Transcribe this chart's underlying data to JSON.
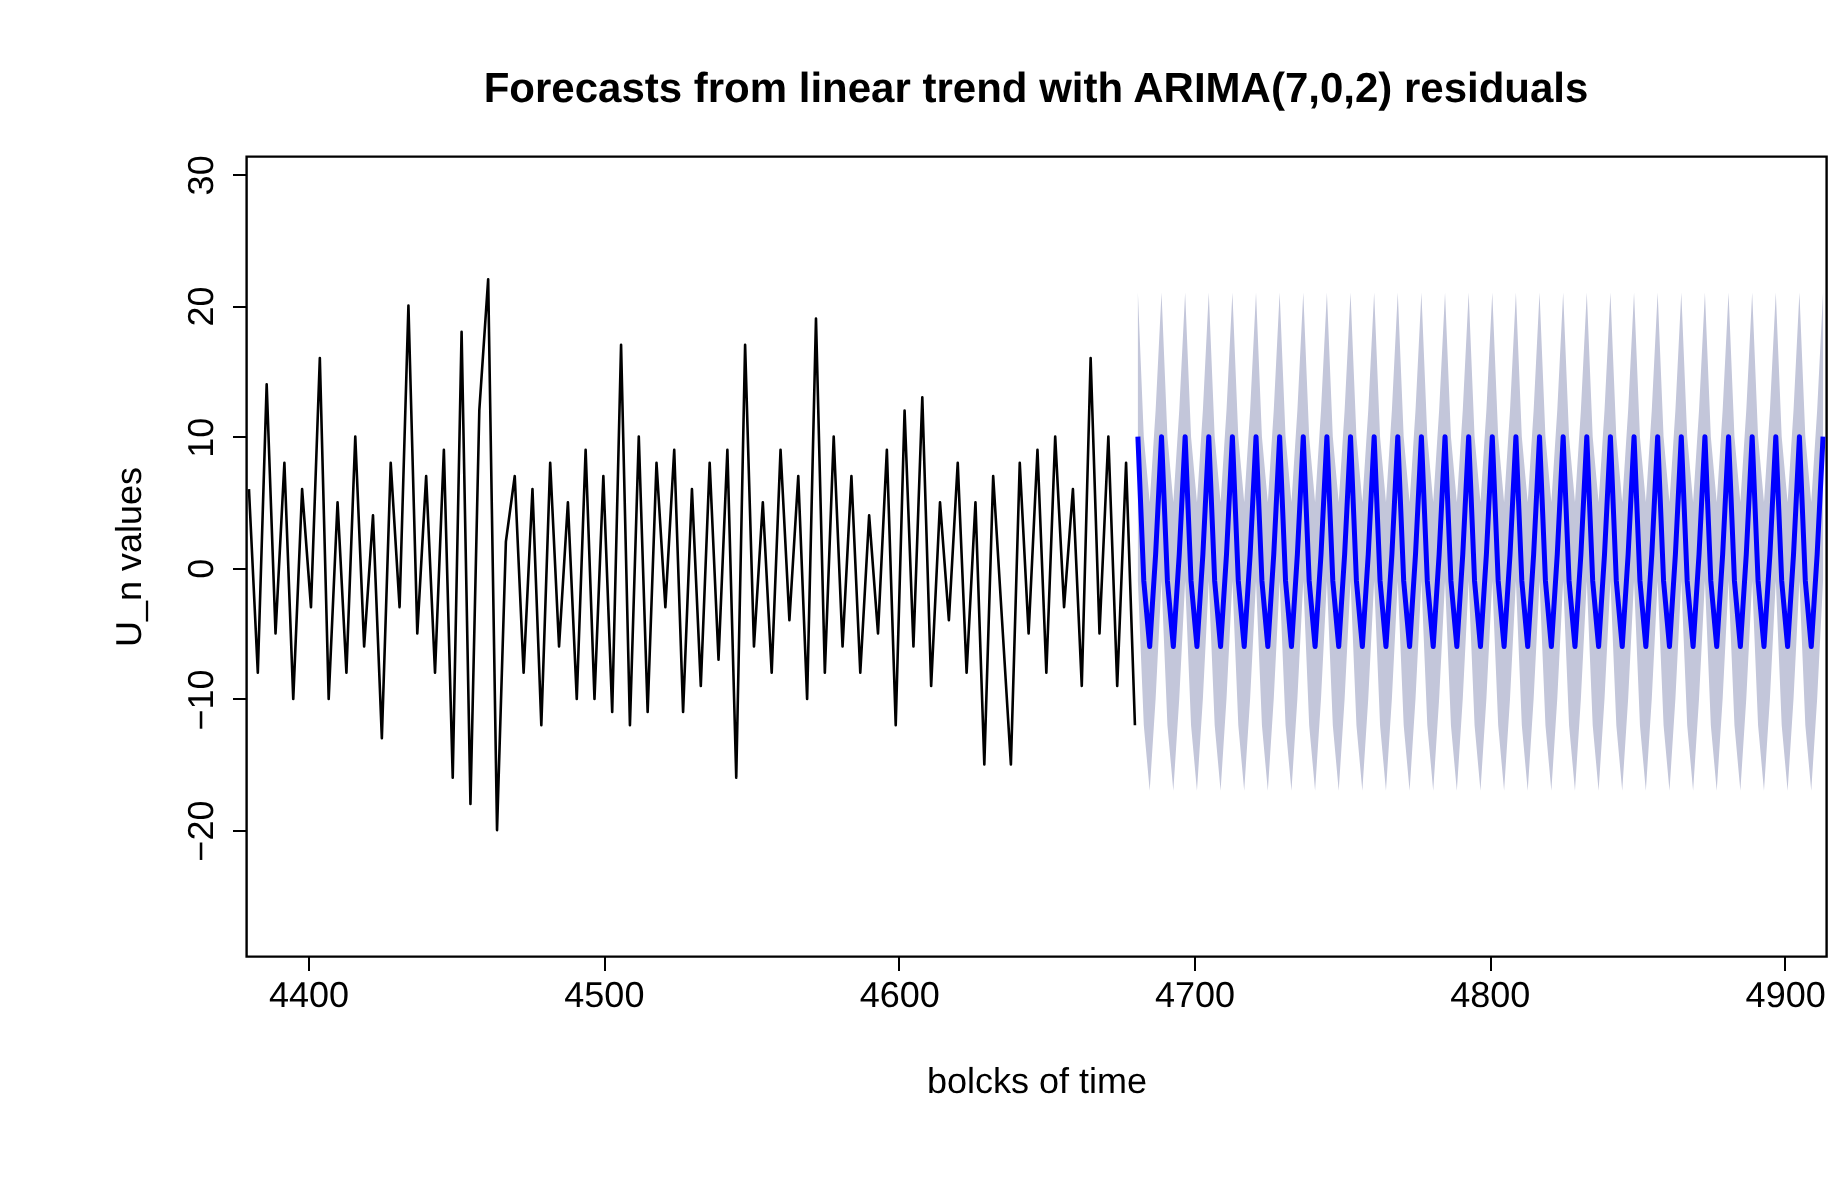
{
  "chart_data": {
    "type": "line",
    "title": "Forecasts from linear trend with ARIMA(7,0,2) residuals",
    "xlabel": "bolcks of time",
    "ylabel": "U_n values",
    "xlim": [
      4379,
      4914
    ],
    "ylim": [
      -29.6,
      31.4
    ],
    "xticks": [
      4400,
      4500,
      4600,
      4700,
      4800,
      4900
    ],
    "yticks": [
      -20,
      -10,
      0,
      10,
      20,
      30
    ],
    "series": [
      {
        "color": "#000000",
        "x": [
          4380,
          4383,
          4386,
          4389,
          4392,
          4395,
          4398,
          4401,
          4404,
          4407,
          4410,
          4413,
          4416,
          4419,
          4422,
          4425,
          4428,
          4431,
          4434,
          4437,
          4440,
          4443,
          4446,
          4449,
          4452,
          4455,
          4458,
          4461,
          4464,
          4467,
          4470,
          4473,
          4476,
          4479,
          4482,
          4485,
          4488,
          4491,
          4494,
          4497,
          4500,
          4503,
          4506,
          4509,
          4512,
          4515,
          4518,
          4521,
          4524,
          4527,
          4530,
          4533,
          4536,
          4539,
          4542,
          4545,
          4548,
          4551,
          4554,
          4557,
          4560,
          4563,
          4566,
          4569,
          4572,
          4575,
          4578,
          4581,
          4584,
          4587,
          4590,
          4593,
          4596,
          4599,
          4602,
          4605,
          4608,
          4611,
          4614,
          4617,
          4620,
          4623,
          4626,
          4629,
          4632,
          4635,
          4638,
          4641,
          4644,
          4647,
          4650,
          4653,
          4656,
          4659,
          4662,
          4665,
          4668,
          4671,
          4674,
          4677,
          4680
        ],
        "values": [
          6,
          -8,
          14,
          -5,
          8,
          -10,
          6,
          -3,
          16,
          -10,
          5,
          -8,
          10,
          -6,
          4,
          -13,
          8,
          -3,
          20,
          -5,
          7,
          -8,
          9,
          -16,
          18,
          -18,
          12,
          22,
          -20,
          2,
          7,
          -8,
          6,
          -12,
          8,
          -6,
          5,
          -10,
          9,
          -10,
          7,
          -11,
          17,
          -12,
          10,
          -11,
          8,
          -3,
          9,
          -11,
          6,
          -9,
          8,
          -7,
          9,
          -16,
          17,
          -6,
          5,
          -8,
          9,
          -4,
          7,
          -10,
          19,
          -8,
          10,
          -6,
          7,
          -8,
          4,
          -5,
          9,
          -12,
          12,
          -6,
          13,
          -9,
          5,
          -4,
          8,
          -8,
          5,
          -15,
          7,
          -4,
          -15,
          8,
          -5,
          9,
          -8,
          10,
          -3,
          6,
          -9,
          16,
          -5,
          10,
          -9,
          8,
          -12
        ]
      },
      {
        "color": "#0000ff",
        "x": [
          4681,
          4683,
          4685,
          4687,
          4689,
          4691,
          4693,
          4695,
          4697,
          4699,
          4701,
          4703,
          4705,
          4707,
          4709,
          4711,
          4713,
          4715,
          4717,
          4719,
          4721,
          4723,
          4725,
          4727,
          4729,
          4731,
          4733,
          4735,
          4737,
          4739,
          4741,
          4743,
          4745,
          4747,
          4749,
          4751,
          4753,
          4755,
          4757,
          4759,
          4761,
          4763,
          4765,
          4767,
          4769,
          4771,
          4773,
          4775,
          4777,
          4779,
          4781,
          4783,
          4785,
          4787,
          4789,
          4791,
          4793,
          4795,
          4797,
          4799,
          4801,
          4803,
          4805,
          4807,
          4809,
          4811,
          4813,
          4815,
          4817,
          4819,
          4821,
          4823,
          4825,
          4827,
          4829,
          4831,
          4833,
          4835,
          4837,
          4839,
          4841,
          4843,
          4845,
          4847,
          4849,
          4851,
          4853,
          4855,
          4857,
          4859,
          4861,
          4863,
          4865,
          4867,
          4869,
          4871,
          4873,
          4875,
          4877,
          4879,
          4881,
          4883,
          4885,
          4887,
          4889,
          4891,
          4893,
          4895,
          4897,
          4899,
          4901,
          4903,
          4905,
          4907,
          4909,
          4911,
          4913
        ],
        "values": [
          10,
          -1,
          -6,
          1,
          10,
          -1,
          -6,
          1,
          10,
          -1,
          -6,
          1,
          10,
          -1,
          -6,
          1,
          10,
          -1,
          -6,
          1,
          10,
          -1,
          -6,
          1,
          10,
          -1,
          -6,
          1,
          10,
          -1,
          -6,
          1,
          10,
          -1,
          -6,
          1,
          10,
          -1,
          -6,
          1,
          10,
          -1,
          -6,
          1,
          10,
          -1,
          -6,
          1,
          10,
          -1,
          -6,
          1,
          10,
          -1,
          -6,
          1,
          10,
          -1,
          -6,
          1,
          10,
          -1,
          -6,
          1,
          10,
          -1,
          -6,
          1,
          10,
          -1,
          -6,
          1,
          10,
          -1,
          -6,
          1,
          10,
          -1,
          -6,
          1,
          10,
          -1,
          -6,
          1,
          10,
          -1,
          -6,
          1,
          10,
          -1,
          -6,
          1,
          10,
          -1,
          -6,
          1,
          10,
          -1,
          -6,
          1,
          10,
          -1,
          -6,
          1,
          10,
          -1,
          -6,
          1,
          10,
          -1,
          -6,
          1,
          10,
          -1,
          -6,
          1,
          10
        ],
        "upper": [
          21,
          10,
          5,
          12,
          21,
          10,
          5,
          12,
          21,
          10,
          5,
          12,
          21,
          10,
          5,
          12,
          21,
          10,
          5,
          12,
          21,
          10,
          5,
          12,
          21,
          10,
          5,
          12,
          21,
          10,
          5,
          12,
          21,
          10,
          5,
          12,
          21,
          10,
          5,
          12,
          21,
          10,
          5,
          12,
          21,
          10,
          5,
          12,
          21,
          10,
          5,
          12,
          21,
          10,
          5,
          12,
          21,
          10,
          5,
          12,
          21,
          10,
          5,
          12,
          21,
          10,
          5,
          12,
          21,
          10,
          5,
          12,
          21,
          10,
          5,
          12,
          21,
          10,
          5,
          12,
          21,
          10,
          5,
          12,
          21,
          10,
          5,
          12,
          21,
          10,
          5,
          12,
          21,
          10,
          5,
          12,
          21,
          10,
          5,
          12,
          21,
          10,
          5,
          12,
          21,
          10,
          5,
          12,
          21,
          10,
          5,
          12,
          21,
          10,
          5,
          12,
          21
        ],
        "lower": [
          -1,
          -12,
          -17,
          -10,
          -1,
          -12,
          -17,
          -10,
          -1,
          -12,
          -17,
          -10,
          -1,
          -12,
          -17,
          -10,
          -1,
          -12,
          -17,
          -10,
          -1,
          -12,
          -17,
          -10,
          -1,
          -12,
          -17,
          -10,
          -1,
          -12,
          -17,
          -10,
          -1,
          -12,
          -17,
          -10,
          -1,
          -12,
          -17,
          -10,
          -1,
          -12,
          -17,
          -10,
          -1,
          -12,
          -17,
          -10,
          -1,
          -12,
          -17,
          -10,
          -1,
          -12,
          -17,
          -10,
          -1,
          -12,
          -17,
          -10,
          -1,
          -12,
          -17,
          -10,
          -1,
          -12,
          -17,
          -10,
          -1,
          -12,
          -17,
          -10,
          -1,
          -12,
          -17,
          -10,
          -1,
          -12,
          -17,
          -10,
          -1,
          -12,
          -17,
          -10,
          -1,
          -12,
          -17,
          -10,
          -1,
          -12,
          -17,
          -10,
          -1,
          -12,
          -17,
          -10,
          -1,
          -12,
          -17,
          -10,
          -1,
          -12,
          -17,
          -10,
          -1,
          -12,
          -17,
          -10,
          -1,
          -12,
          -17,
          -10,
          -1,
          -12,
          -17,
          -10,
          -1
        ]
      }
    ]
  }
}
